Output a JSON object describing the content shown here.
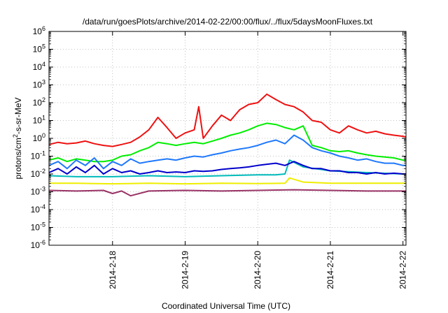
{
  "chart_data": {
    "type": "line",
    "title": "/data/run/goesPlots/archive/2014-02-22/00:00/flux/../flux/5daysMoonFluxes.txt",
    "xlabel": "Coordinated Universal Time (UTC)",
    "ylabel": {
      "before": "protons/cm",
      "sup": "2",
      "after": "-s-sr-MeV"
    },
    "x_range": [
      "2014-02-17T03:00",
      "2014-02-22T01:00"
    ],
    "x_ticks": [
      "2014-2-18",
      "2014-2-19",
      "2014-2-20",
      "2014-2-21",
      "2014-2-22"
    ],
    "y_scale": "log",
    "ylim": [
      1e-06,
      1000000.0
    ],
    "y_ticks": [
      {
        "base": "10",
        "exp": "-6",
        "value": 1e-06
      },
      {
        "base": "10",
        "exp": "-5",
        "value": 1e-05
      },
      {
        "base": "10",
        "exp": "-4",
        "value": 0.0001
      },
      {
        "base": "10",
        "exp": "-3",
        "value": 0.001
      },
      {
        "base": "10",
        "exp": "-2",
        "value": 0.01
      },
      {
        "base": "10",
        "exp": "-1",
        "value": 0.1
      },
      {
        "base": "10",
        "exp": "0",
        "value": 1.0
      },
      {
        "base": "10",
        "exp": "1",
        "value": 10.0
      },
      {
        "base": "10",
        "exp": "2",
        "value": 100.0
      },
      {
        "base": "10",
        "exp": "3",
        "value": 1000.0
      },
      {
        "base": "10",
        "exp": "4",
        "value": 10000.0
      },
      {
        "base": "10",
        "exp": "5",
        "value": 100000.0
      },
      {
        "base": "10",
        "exp": "6",
        "value": 1000000.0
      }
    ],
    "grid": true,
    "series": [
      {
        "color": "#ee1111",
        "x": [
          "2014-02-17T03:00",
          "2014-02-17T06:00",
          "2014-02-17T09:00",
          "2014-02-17T12:00",
          "2014-02-17T15:00",
          "2014-02-17T18:00",
          "2014-02-17T21:00",
          "2014-02-18T00:00",
          "2014-02-18T03:00",
          "2014-02-18T06:00",
          "2014-02-18T09:00",
          "2014-02-18T12:00",
          "2014-02-18T15:00",
          "2014-02-18T18:00",
          "2014-02-18T21:00",
          "2014-02-19T00:00",
          "2014-02-19T03:00",
          "2014-02-19T04:30",
          "2014-02-19T06:00",
          "2014-02-19T09:00",
          "2014-02-19T12:00",
          "2014-02-19T15:00",
          "2014-02-19T18:00",
          "2014-02-19T21:00",
          "2014-02-20T00:00",
          "2014-02-20T03:00",
          "2014-02-20T06:00",
          "2014-02-20T09:00",
          "2014-02-20T12:00",
          "2014-02-20T15:00",
          "2014-02-20T18:00",
          "2014-02-20T21:00",
          "2014-02-21T00:00",
          "2014-02-21T03:00",
          "2014-02-21T06:00",
          "2014-02-21T09:00",
          "2014-02-21T12:00",
          "2014-02-21T15:00",
          "2014-02-21T18:00",
          "2014-02-21T21:00",
          "2014-02-22T00:00",
          "2014-02-22T01:00"
        ],
        "y": [
          0.45,
          0.6,
          0.5,
          0.55,
          0.7,
          0.5,
          0.4,
          0.35,
          0.45,
          0.6,
          1.2,
          3,
          15,
          4,
          1,
          2,
          3,
          60,
          1,
          5,
          20,
          10,
          40,
          80,
          100,
          300,
          150,
          80,
          60,
          30,
          10,
          8,
          3,
          2,
          5,
          3,
          2,
          2.5,
          1.8,
          1.5,
          1.3,
          1.2
        ]
      },
      {
        "color": "#00ee00",
        "x": [
          "2014-02-17T03:00",
          "2014-02-17T06:00",
          "2014-02-17T09:00",
          "2014-02-17T12:00",
          "2014-02-17T15:00",
          "2014-02-17T18:00",
          "2014-02-17T21:00",
          "2014-02-18T00:00",
          "2014-02-18T03:00",
          "2014-02-18T06:00",
          "2014-02-18T09:00",
          "2014-02-18T12:00",
          "2014-02-18T15:00",
          "2014-02-18T18:00",
          "2014-02-18T21:00",
          "2014-02-19T00:00",
          "2014-02-19T03:00",
          "2014-02-19T06:00",
          "2014-02-19T09:00",
          "2014-02-19T12:00",
          "2014-02-19T15:00",
          "2014-02-19T18:00",
          "2014-02-19T21:00",
          "2014-02-20T00:00",
          "2014-02-20T03:00",
          "2014-02-20T06:00",
          "2014-02-20T09:00",
          "2014-02-20T12:00",
          "2014-02-20T15:00",
          "2014-02-20T18:00",
          "2014-02-20T21:00",
          "2014-02-21T00:00",
          "2014-02-21T03:00",
          "2014-02-21T06:00",
          "2014-02-21T09:00",
          "2014-02-21T12:00",
          "2014-02-21T15:00",
          "2014-02-21T18:00",
          "2014-02-21T21:00",
          "2014-02-22T00:00",
          "2014-02-22T01:00"
        ],
        "y": [
          0.06,
          0.08,
          0.05,
          0.07,
          0.06,
          0.05,
          0.05,
          0.06,
          0.1,
          0.12,
          0.2,
          0.3,
          0.6,
          0.5,
          0.4,
          0.5,
          0.6,
          0.5,
          0.7,
          1,
          1.5,
          2,
          3,
          5,
          7,
          6,
          4,
          3,
          5,
          0.4,
          0.3,
          0.2,
          0.18,
          0.2,
          0.15,
          0.12,
          0.1,
          0.09,
          0.08,
          0.06,
          0.06
        ]
      },
      {
        "color": "#1e78ff",
        "x": [
          "2014-02-17T03:00",
          "2014-02-17T06:00",
          "2014-02-17T09:00",
          "2014-02-17T12:00",
          "2014-02-17T15:00",
          "2014-02-17T18:00",
          "2014-02-17T21:00",
          "2014-02-18T00:00",
          "2014-02-18T03:00",
          "2014-02-18T06:00",
          "2014-02-18T09:00",
          "2014-02-18T12:00",
          "2014-02-18T15:00",
          "2014-02-18T18:00",
          "2014-02-18T21:00",
          "2014-02-19T00:00",
          "2014-02-19T03:00",
          "2014-02-19T06:00",
          "2014-02-19T09:00",
          "2014-02-19T12:00",
          "2014-02-19T15:00",
          "2014-02-19T18:00",
          "2014-02-19T21:00",
          "2014-02-20T00:00",
          "2014-02-20T03:00",
          "2014-02-20T06:00",
          "2014-02-20T09:00",
          "2014-02-20T12:00",
          "2014-02-20T15:00",
          "2014-02-20T18:00",
          "2014-02-20T21:00",
          "2014-02-21T00:00",
          "2014-02-21T03:00",
          "2014-02-21T06:00",
          "2014-02-21T09:00",
          "2014-02-21T12:00",
          "2014-02-21T15:00",
          "2014-02-21T18:00",
          "2014-02-21T21:00",
          "2014-02-22T00:00",
          "2014-02-22T01:00"
        ],
        "y": [
          0.03,
          0.05,
          0.02,
          0.06,
          0.03,
          0.08,
          0.02,
          0.05,
          0.03,
          0.07,
          0.04,
          0.05,
          0.06,
          0.07,
          0.06,
          0.08,
          0.1,
          0.09,
          0.12,
          0.15,
          0.2,
          0.25,
          0.3,
          0.4,
          0.6,
          0.8,
          0.5,
          1.5,
          0.8,
          0.3,
          0.2,
          0.15,
          0.1,
          0.08,
          0.06,
          0.07,
          0.05,
          0.04,
          0.04,
          0.03,
          0.03
        ]
      },
      {
        "color": "#00bbbb",
        "x": [
          "2014-02-17T03:00",
          "2014-02-17T12:00",
          "2014-02-18T00:00",
          "2014-02-18T12:00",
          "2014-02-19T00:00",
          "2014-02-19T12:00",
          "2014-02-20T00:00",
          "2014-02-20T06:00",
          "2014-02-20T09:00",
          "2014-02-20T10:30",
          "2014-02-20T15:00",
          "2014-02-21T00:00",
          "2014-02-21T12:00",
          "2014-02-22T00:00",
          "2014-02-22T01:00"
        ],
        "y": [
          0.008,
          0.007,
          0.007,
          0.008,
          0.007,
          0.008,
          0.009,
          0.009,
          0.01,
          0.06,
          0.025,
          0.015,
          0.012,
          0.01,
          0.01
        ]
      },
      {
        "color": "#0000cc",
        "x": [
          "2014-02-17T03:00",
          "2014-02-17T06:00",
          "2014-02-17T09:00",
          "2014-02-17T12:00",
          "2014-02-17T15:00",
          "2014-02-17T18:00",
          "2014-02-17T21:00",
          "2014-02-18T00:00",
          "2014-02-18T03:00",
          "2014-02-18T06:00",
          "2014-02-18T09:00",
          "2014-02-18T12:00",
          "2014-02-18T15:00",
          "2014-02-18T18:00",
          "2014-02-18T21:00",
          "2014-02-19T00:00",
          "2014-02-19T03:00",
          "2014-02-19T06:00",
          "2014-02-19T09:00",
          "2014-02-19T12:00",
          "2014-02-19T15:00",
          "2014-02-19T18:00",
          "2014-02-19T21:00",
          "2014-02-20T00:00",
          "2014-02-20T03:00",
          "2014-02-20T06:00",
          "2014-02-20T09:00",
          "2014-02-20T12:00",
          "2014-02-20T15:00",
          "2014-02-20T18:00",
          "2014-02-20T21:00",
          "2014-02-21T00:00",
          "2014-02-21T03:00",
          "2014-02-21T06:00",
          "2014-02-21T09:00",
          "2014-02-21T12:00",
          "2014-02-21T15:00",
          "2014-02-21T18:00",
          "2014-02-21T21:00",
          "2014-02-22T00:00",
          "2014-02-22T01:00"
        ],
        "y": [
          0.012,
          0.02,
          0.01,
          0.025,
          0.012,
          0.03,
          0.01,
          0.02,
          0.012,
          0.015,
          0.01,
          0.012,
          0.015,
          0.012,
          0.013,
          0.012,
          0.015,
          0.014,
          0.015,
          0.018,
          0.02,
          0.022,
          0.025,
          0.03,
          0.035,
          0.04,
          0.03,
          0.05,
          0.03,
          0.02,
          0.02,
          0.015,
          0.015,
          0.012,
          0.012,
          0.01,
          0.012,
          0.01,
          0.011,
          0.01,
          0.01
        ]
      },
      {
        "color": "#eeee00",
        "x": [
          "2014-02-17T03:00",
          "2014-02-17T12:00",
          "2014-02-18T00:00",
          "2014-02-18T12:00",
          "2014-02-19T00:00",
          "2014-02-19T12:00",
          "2014-02-20T00:00",
          "2014-02-20T09:00",
          "2014-02-20T10:30",
          "2014-02-20T15:00",
          "2014-02-21T00:00",
          "2014-02-21T12:00",
          "2014-02-22T00:00",
          "2014-02-22T01:00"
        ],
        "y": [
          0.003,
          0.003,
          0.0028,
          0.003,
          0.0028,
          0.003,
          0.0029,
          0.003,
          0.006,
          0.0035,
          0.003,
          0.003,
          0.003,
          0.003
        ]
      },
      {
        "color": "#993366",
        "x": [
          "2014-02-17T03:00",
          "2014-02-17T12:00",
          "2014-02-17T21:00",
          "2014-02-18T00:00",
          "2014-02-18T03:00",
          "2014-02-18T06:00",
          "2014-02-18T12:00",
          "2014-02-19T00:00",
          "2014-02-19T12:00",
          "2014-02-20T00:00",
          "2014-02-20T12:00",
          "2014-02-21T00:00",
          "2014-02-21T12:00",
          "2014-02-22T00:00",
          "2014-02-22T01:00"
        ],
        "y": [
          0.0012,
          0.0011,
          0.0012,
          0.0008,
          0.0011,
          0.0006,
          0.0011,
          0.0012,
          0.0011,
          0.0012,
          0.0013,
          0.0012,
          0.0011,
          0.0011,
          0.0011
        ]
      }
    ]
  }
}
